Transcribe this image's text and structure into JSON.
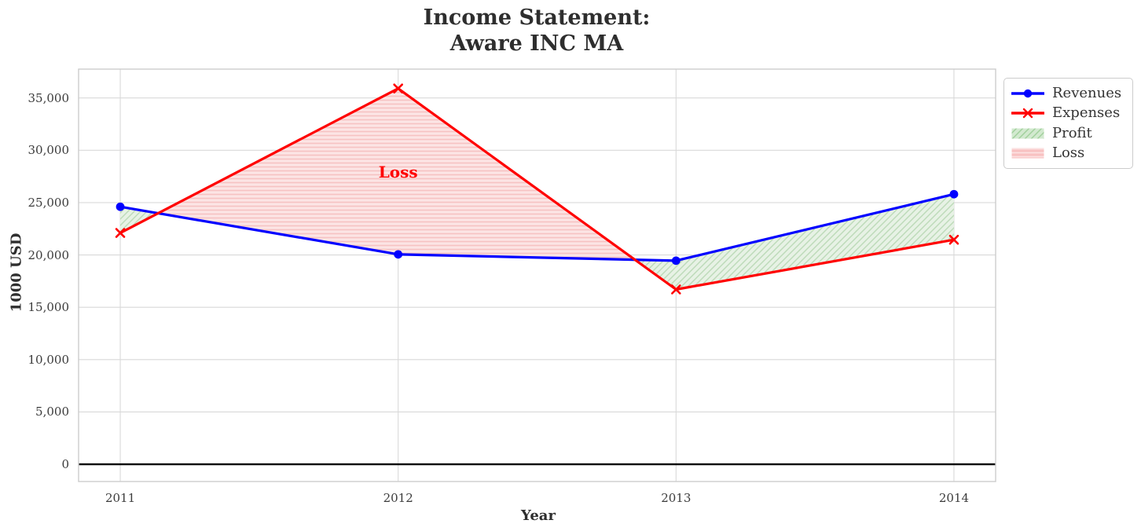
{
  "chart_data": {
    "type": "line",
    "title": "Income Statement: Aware INC MA",
    "title_lines": [
      "Income Statement:",
      "Aware INC MA"
    ],
    "xlabel": "Year",
    "ylabel": "1000 USD",
    "categories": [
      "2011",
      "2012",
      "2013",
      "2014"
    ],
    "series": [
      {
        "name": "Revenues",
        "color": "#0000ff",
        "marker": "circle",
        "values": [
          24600,
          20050,
          19450,
          25800
        ]
      },
      {
        "name": "Expenses",
        "color": "#ff0000",
        "marker": "x",
        "values": [
          22100,
          35900,
          16700,
          21450
        ]
      }
    ],
    "fills": [
      {
        "name": "Profit",
        "condition": "revenues >= expenses",
        "fill": "#e7f2e5",
        "hatch": "diagonal",
        "hatch_color": "#bcdab8"
      },
      {
        "name": "Loss",
        "condition": "expenses > revenues",
        "fill": "#fce5e5",
        "hatch": "horizontal",
        "hatch_color": "#f6c3c3"
      }
    ],
    "annotations": [
      {
        "text": "Loss",
        "x": "2012",
        "y": 27900,
        "color": "#ff0000"
      }
    ],
    "yticks": [
      0,
      5000,
      10000,
      15000,
      20000,
      25000,
      30000,
      35000
    ],
    "ytick_labels": [
      "0",
      "5,000",
      "10,000",
      "15,000",
      "20,000",
      "25,000",
      "30,000",
      "35,000"
    ],
    "ylim": [
      -1650,
      37750
    ],
    "grid": true,
    "zero_line": true,
    "legend": {
      "position": "outside-top-right",
      "entries": [
        {
          "label": "Revenues",
          "swatch": "line-circle",
          "color": "#0000ff"
        },
        {
          "label": "Expenses",
          "swatch": "line-x",
          "color": "#ff0000"
        },
        {
          "label": "Profit",
          "swatch": "patch-diagonal",
          "fill": "#d2e9cf",
          "hatch_color": "#a0d09b"
        },
        {
          "label": "Loss",
          "swatch": "patch-horizontal",
          "fill": "#f8c2c2",
          "hatch_color": "#fce2e2"
        }
      ]
    }
  }
}
